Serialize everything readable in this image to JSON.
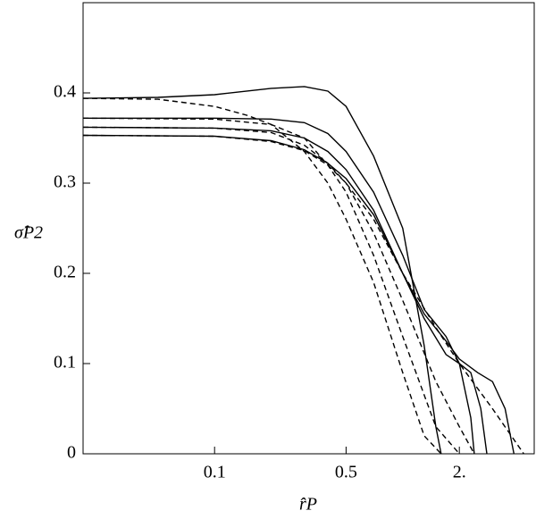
{
  "chart_data": {
    "type": "line",
    "x_label": "r̂P",
    "y_label": "σ̂P2",
    "xscale": "log",
    "xlim": [
      0.02,
      5
    ],
    "xticks": [
      0.1,
      0.5,
      {
        "value": 2,
        "label": "2."
      }
    ],
    "ylim": [
      0,
      0.5
    ],
    "yticks": [
      0,
      0.1,
      0.2,
      0.3,
      0.4
    ],
    "series": [
      {
        "color": "#000000",
        "style": "solid",
        "x": [
          0.02,
          0.05,
          0.1,
          0.2,
          0.3,
          0.4,
          0.5,
          0.7,
          1.0,
          1.3,
          1.5,
          1.6
        ],
        "values": [
          0.394,
          0.395,
          0.398,
          0.405,
          0.407,
          0.402,
          0.385,
          0.33,
          0.25,
          0.12,
          0.03,
          0
        ]
      },
      {
        "color": "#000000",
        "style": "solid",
        "x": [
          0.02,
          0.1,
          0.2,
          0.3,
          0.4,
          0.5,
          0.7,
          1.0,
          1.3,
          1.7,
          2.0,
          2.3,
          2.4
        ],
        "values": [
          0.372,
          0.372,
          0.371,
          0.367,
          0.355,
          0.335,
          0.29,
          0.22,
          0.16,
          0.13,
          0.1,
          0.04,
          0
        ]
      },
      {
        "color": "#000000",
        "style": "solid",
        "x": [
          0.02,
          0.1,
          0.2,
          0.3,
          0.4,
          0.5,
          0.7,
          1.0,
          1.3,
          1.7,
          2.0,
          2.3,
          2.6,
          2.8
        ],
        "values": [
          0.362,
          0.361,
          0.358,
          0.35,
          0.335,
          0.315,
          0.27,
          0.2,
          0.15,
          0.11,
          0.1,
          0.09,
          0.05,
          0
        ]
      },
      {
        "color": "#000000",
        "style": "solid",
        "x": [
          0.02,
          0.1,
          0.2,
          0.3,
          0.4,
          0.5,
          0.7,
          1.0,
          1.3,
          1.7,
          2.0,
          2.5,
          3.0,
          3.5,
          3.9
        ],
        "values": [
          0.353,
          0.352,
          0.347,
          0.337,
          0.322,
          0.305,
          0.265,
          0.2,
          0.155,
          0.125,
          0.105,
          0.09,
          0.08,
          0.05,
          0
        ]
      },
      {
        "color": "#000000",
        "style": "dashed",
        "x": [
          0.02,
          0.05,
          0.1,
          0.15,
          0.2,
          0.3,
          0.4,
          0.5,
          0.7,
          1.0,
          1.3,
          1.6
        ],
        "values": [
          0.394,
          0.393,
          0.385,
          0.375,
          0.365,
          0.335,
          0.3,
          0.26,
          0.19,
          0.09,
          0.02,
          0
        ]
      },
      {
        "color": "#000000",
        "style": "dashed",
        "x": [
          0.02,
          0.1,
          0.2,
          0.3,
          0.4,
          0.5,
          0.7,
          1.0,
          1.5,
          2.0
        ],
        "values": [
          0.372,
          0.371,
          0.365,
          0.35,
          0.32,
          0.29,
          0.22,
          0.13,
          0.03,
          0
        ]
      },
      {
        "color": "#000000",
        "style": "dashed",
        "x": [
          0.02,
          0.1,
          0.2,
          0.3,
          0.4,
          0.5,
          0.7,
          1.0,
          1.5,
          2.0,
          2.4
        ],
        "values": [
          0.362,
          0.361,
          0.356,
          0.342,
          0.322,
          0.3,
          0.245,
          0.17,
          0.08,
          0.03,
          0
        ]
      },
      {
        "color": "#000000",
        "style": "dashed",
        "x": [
          0.02,
          0.1,
          0.2,
          0.3,
          0.4,
          0.5,
          0.7,
          1.0,
          1.5,
          2.0,
          3.0,
          4.4
        ],
        "values": [
          0.353,
          0.352,
          0.346,
          0.336,
          0.32,
          0.3,
          0.26,
          0.2,
          0.14,
          0.1,
          0.05,
          0
        ]
      }
    ]
  }
}
